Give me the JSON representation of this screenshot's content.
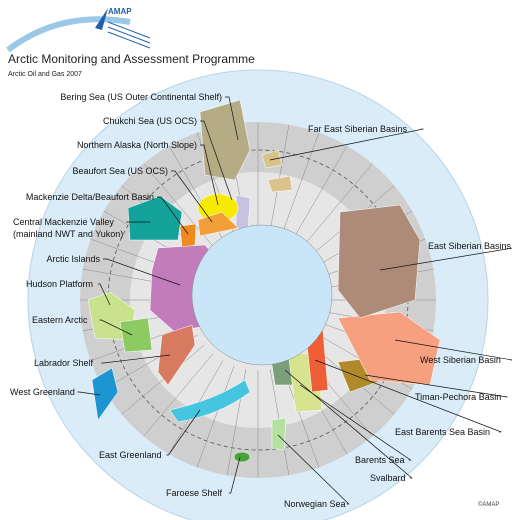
{
  "header": {
    "logo": "AMAP",
    "title": "Arctic Monitoring and Assessment Programme",
    "subtitle": "Arctic Oil and Gas 2007"
  },
  "labels": [
    [
      "Bering Sea (US Outer Continental Shelf)"
    ],
    [
      "Chukchi Sea (US OCS)"
    ],
    [
      "Northern Alaska (North Slope)"
    ],
    [
      "Beaufort Sea (US OCS)"
    ],
    [
      "Mackenzie Delta/Beaufort Basin"
    ],
    [
      "Central Mackenzie Valley",
      "(mainland NWT and Yukon)"
    ],
    [
      "Arctic Islands"
    ],
    [
      "Hudson Platform"
    ],
    [
      "Eastern Arctic"
    ],
    [
      "Labrador Shelf"
    ],
    [
      "West Greenland"
    ],
    [
      "East Greenland"
    ],
    [
      "Faroese Shelf"
    ],
    [
      "Norwegian Sea"
    ],
    [
      "Svalbard"
    ],
    [
      "Barents Sea"
    ],
    [
      "East Barents Sea Basin"
    ],
    [
      "Timan-Pechora Basin"
    ],
    [
      "West Siberian Basin"
    ],
    [
      "East Siberian Basins"
    ],
    [
      "Far East Siberian Basins"
    ]
  ],
  "copyright": "©AMAP"
}
